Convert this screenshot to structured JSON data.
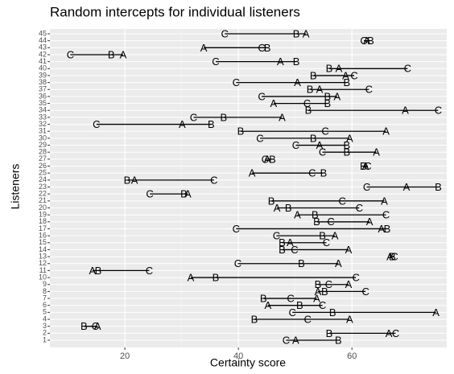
{
  "chart_data": {
    "type": "dot",
    "title": "Random intercepts for individual listeners",
    "x_label": "Certainty score",
    "y_label": "Listeners",
    "categories": [
      "1",
      "2",
      "3",
      "4",
      "5",
      "6",
      "7",
      "8",
      "9",
      "10",
      "11",
      "12",
      "13",
      "14",
      "15",
      "16",
      "17",
      "18",
      "19",
      "20",
      "21",
      "22",
      "23",
      "24",
      "25",
      "26",
      "27",
      "28",
      "29",
      "30",
      "31",
      "32",
      "33",
      "34",
      "35",
      "36",
      "37",
      "38",
      "39",
      "40",
      "41",
      "42",
      "43",
      "44",
      "45"
    ],
    "series": [
      {
        "name": "A",
        "color": "#000000",
        "values": [
          50.1,
          66.5,
          15.2,
          59.6,
          74.8,
          45.2,
          53.8,
          54.0,
          59.4,
          31.6,
          14.3,
          57.6,
          66.7,
          59.4,
          49.1,
          57.0,
          65.2,
          63.1,
          50.4,
          46.8,
          65.7,
          31.1,
          69.6,
          21.7,
          42.4,
          62.4,
          45.1,
          64.3,
          54.3,
          59.6,
          66.0,
          30.1,
          47.7,
          69.4,
          46.2,
          57.4,
          54.3,
          50.4,
          58.9,
          57.7,
          47.4,
          19.7,
          33.9,
          62.6,
          51.9
        ]
      },
      {
        "name": "B",
        "color": "#000000",
        "values": [
          57.6,
          56.0,
          12.8,
          42.8,
          56.6,
          50.8,
          44.4,
          55.2,
          54.0,
          36.0,
          15.3,
          51.1,
          67.1,
          47.7,
          47.7,
          54.8,
          66.2,
          53.8,
          53.5,
          48.8,
          45.8,
          30.4,
          75.2,
          20.4,
          55.0,
          62.0,
          46.0,
          59.1,
          59.1,
          53.2,
          40.4,
          35.2,
          37.4,
          52.3,
          55.7,
          55.7,
          52.6,
          59.1,
          53.2,
          56.0,
          50.2,
          17.6,
          45.1,
          63.3,
          50.2
        ]
      },
      {
        "name": "C",
        "color": "#000000",
        "values": [
          48.4,
          67.7,
          14.8,
          52.2,
          49.5,
          54.8,
          49.2,
          62.4,
          55.9,
          60.7,
          24.3,
          39.9,
          67.5,
          49.9,
          55.5,
          46.7,
          39.6,
          56.3,
          66.0,
          61.3,
          58.3,
          24.4,
          62.6,
          35.7,
          53.0,
          62.8,
          44.7,
          54.8,
          50.1,
          43.8,
          55.3,
          15.0,
          32.1,
          75.2,
          52.1,
          44.1,
          63.0,
          39.6,
          60.4,
          69.8,
          36.0,
          10.4,
          44.1,
          62.1,
          37.6
        ]
      }
    ],
    "xlim": [
      6.8,
      76.7
    ],
    "xticks": [
      20,
      40,
      60
    ],
    "grid": true
  }
}
